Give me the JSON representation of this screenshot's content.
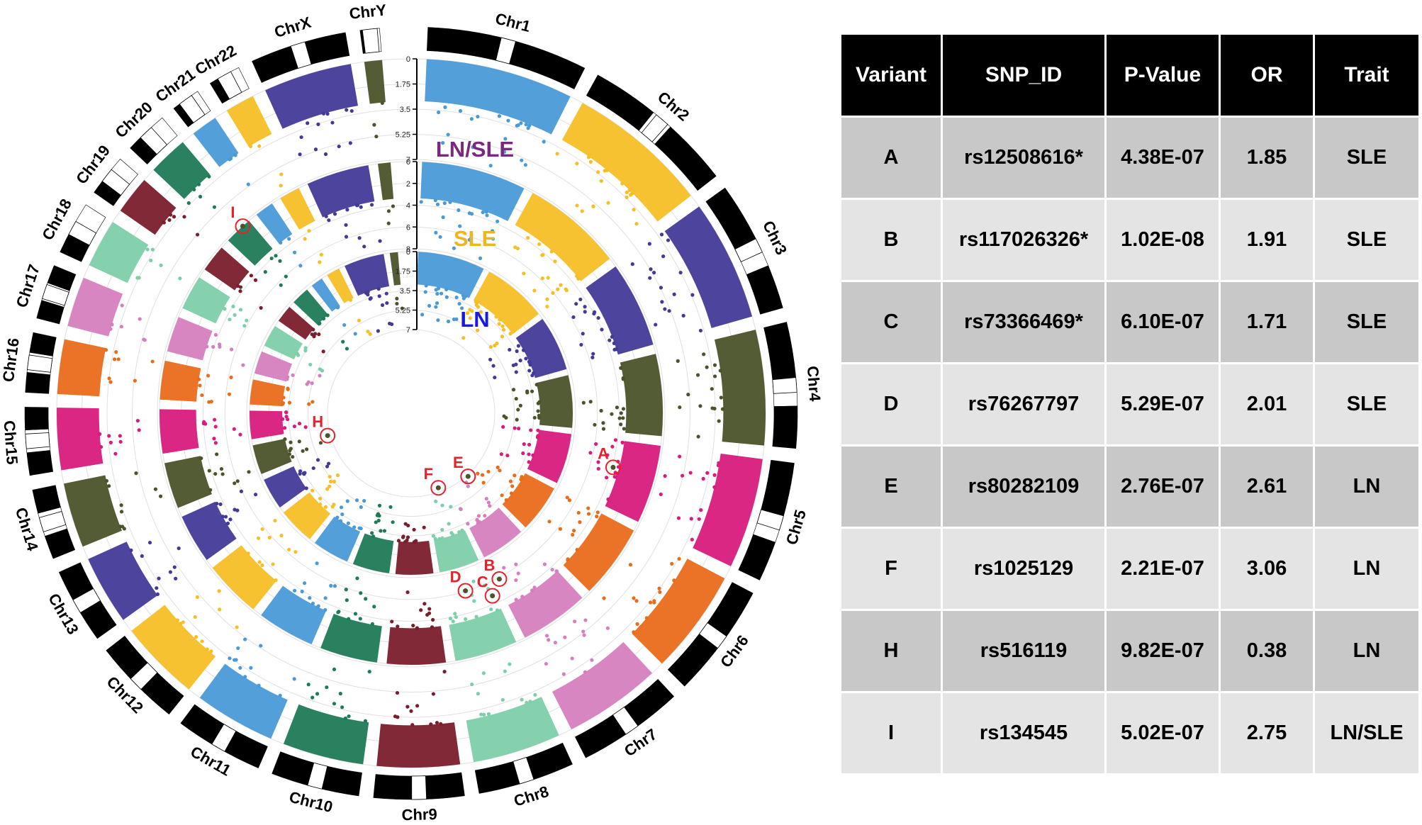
{
  "chart_data": [
    {
      "type": "manhattan-circos",
      "chromosomes": [
        "Chr1",
        "Chr2",
        "Chr3",
        "Chr4",
        "Chr5",
        "Chr6",
        "Chr7",
        "Chr8",
        "Chr9",
        "Chr10",
        "Chr11",
        "Chr12",
        "Chr13",
        "Chr14",
        "Chr15",
        "Chr16",
        "Chr17",
        "Chr18",
        "Chr19",
        "Chr20",
        "Chr21",
        "Chr22",
        "ChrX",
        "ChrY"
      ],
      "chromosome_colors": [
        "#4a9ad8",
        "#f6bf26",
        "#433a98",
        "#4b532b",
        "#d81b7d",
        "#e96c1b",
        "#d67fbf",
        "#7ecfa9",
        "#7a1d2c",
        "#1f7a57",
        "#4a9ad8",
        "#f6bf26",
        "#433a98",
        "#4b532b",
        "#d81b7d",
        "#e96c1b",
        "#d67fbf",
        "#7ecfa9",
        "#7a1d2c",
        "#1f7a57",
        "#4a9ad8",
        "#f6bf26",
        "#433a98",
        "#4b532b"
      ],
      "tracks": [
        {
          "name": "LN/SLE",
          "color": "#7a2a7e",
          "scale_ticks": [
            "0",
            "1.75",
            "3.5",
            "5.25",
            "7"
          ]
        },
        {
          "name": "SLE",
          "color": "#f0b323",
          "scale_ticks": [
            "0",
            "2",
            "4",
            "6",
            "8"
          ]
        },
        {
          "name": "LN",
          "color": "#1a1adc",
          "scale_ticks": [
            "0",
            "1.75",
            "3.5",
            "5.25",
            "7"
          ]
        }
      ],
      "highlighted_variants": [
        {
          "label": "A",
          "track": "SLE"
        },
        {
          "label": "B",
          "track": "SLE"
        },
        {
          "label": "C",
          "track": "SLE"
        },
        {
          "label": "D",
          "track": "SLE"
        },
        {
          "label": "E",
          "track": "LN"
        },
        {
          "label": "F",
          "track": "LN"
        },
        {
          "label": "H",
          "track": "LN"
        },
        {
          "label": "I",
          "track": "LN/SLE"
        }
      ],
      "marker_color": "#e8202a"
    },
    {
      "type": "table",
      "columns": [
        "Variant",
        "SNP_ID",
        "P-Value",
        "OR",
        "Trait"
      ],
      "rows": [
        [
          "A",
          "rs12508616*",
          "4.38E-07",
          "1.85",
          "SLE"
        ],
        [
          "B",
          "rs117026326*",
          "1.02E-08",
          "1.91",
          "SLE"
        ],
        [
          "C",
          "rs73366469*",
          "6.10E-07",
          "1.71",
          "SLE"
        ],
        [
          "D",
          "rs76267797",
          "5.29E-07",
          "2.01",
          "SLE"
        ],
        [
          "E",
          "rs80282109",
          "2.76E-07",
          "2.61",
          "LN"
        ],
        [
          "F",
          "rs1025129",
          "2.21E-07",
          "3.06",
          "LN"
        ],
        [
          "H",
          "rs516119",
          "9.82E-07",
          "0.38",
          "LN"
        ],
        [
          "I",
          "rs134545",
          "5.02E-07",
          "2.75",
          "LN/SLE"
        ]
      ]
    }
  ]
}
